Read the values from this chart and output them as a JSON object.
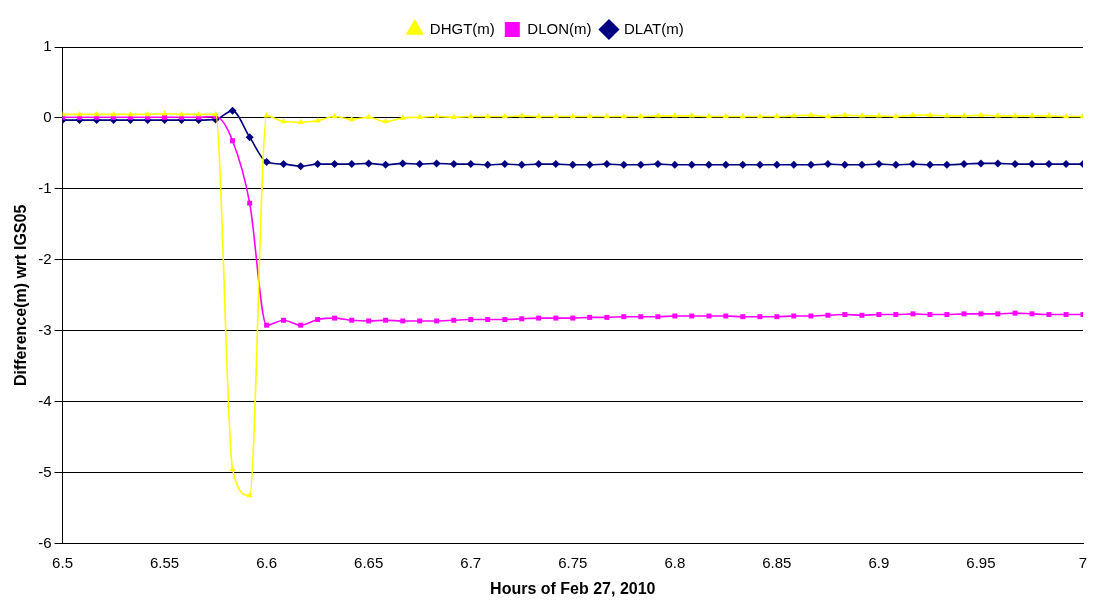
{
  "chart_data": {
    "type": "line",
    "xlabel": "Hours of Feb 27, 2010",
    "ylabel": "Difference(m) wrt IGS05",
    "x": [
      6.5,
      6.5083,
      6.5167,
      6.525,
      6.5333,
      6.5417,
      6.55,
      6.5583,
      6.5667,
      6.575,
      6.5833,
      6.5917,
      6.6,
      6.6083,
      6.6167,
      6.625,
      6.6333,
      6.6417,
      6.65,
      6.6583,
      6.6667,
      6.675,
      6.6833,
      6.6917,
      6.7,
      6.7083,
      6.7167,
      6.725,
      6.7333,
      6.7417,
      6.75,
      6.7583,
      6.7667,
      6.775,
      6.7833,
      6.7917,
      6.8,
      6.8083,
      6.8167,
      6.825,
      6.8333,
      6.8417,
      6.85,
      6.8583,
      6.8667,
      6.875,
      6.8833,
      6.8917,
      6.9,
      6.9083,
      6.9167,
      6.925,
      6.9333,
      6.9417,
      6.95,
      6.9583,
      6.9667,
      6.975,
      6.9833,
      6.9917,
      7
    ],
    "series": [
      {
        "name": "DLAT(m)",
        "color": "#000080",
        "marker": "diamond",
        "values": [
          -0.03,
          -0.03,
          -0.03,
          -0.03,
          -0.03,
          -0.03,
          -0.03,
          -0.03,
          -0.03,
          -0.02,
          0.1,
          -0.27,
          -0.62,
          -0.65,
          -0.68,
          -0.65,
          -0.65,
          -0.65,
          -0.64,
          -0.66,
          -0.64,
          -0.65,
          -0.64,
          -0.65,
          -0.65,
          -0.66,
          -0.65,
          -0.66,
          -0.65,
          -0.65,
          -0.66,
          -0.66,
          -0.65,
          -0.66,
          -0.66,
          -0.65,
          -0.66,
          -0.66,
          -0.66,
          -0.66,
          -0.66,
          -0.66,
          -0.66,
          -0.66,
          -0.66,
          -0.65,
          -0.66,
          -0.66,
          -0.65,
          -0.66,
          -0.65,
          -0.66,
          -0.66,
          -0.65,
          -0.64,
          -0.64,
          -0.65,
          -0.65,
          -0.65,
          -0.65,
          -0.65
        ]
      },
      {
        "name": "DLON(m)",
        "color": "#ff00ff",
        "marker": "square",
        "values": [
          0.01,
          0.01,
          0.01,
          0.01,
          0.01,
          0.01,
          0.01,
          0.01,
          0.01,
          0.02,
          -0.32,
          -1.2,
          -2.92,
          -2.85,
          -2.92,
          -2.84,
          -2.82,
          -2.85,
          -2.86,
          -2.85,
          -2.86,
          -2.86,
          -2.86,
          -2.85,
          -2.84,
          -2.84,
          -2.84,
          -2.83,
          -2.82,
          -2.82,
          -2.82,
          -2.81,
          -2.81,
          -2.8,
          -2.8,
          -2.8,
          -2.79,
          -2.79,
          -2.79,
          -2.79,
          -2.8,
          -2.8,
          -2.8,
          -2.79,
          -2.79,
          -2.78,
          -2.77,
          -2.78,
          -2.77,
          -2.77,
          -2.76,
          -2.77,
          -2.77,
          -2.76,
          -2.76,
          -2.76,
          -2.75,
          -2.76,
          -2.77,
          -2.77,
          -2.77
        ]
      },
      {
        "name": "DHGT(m)",
        "color": "#ffff00",
        "marker": "triangle",
        "values": [
          0.05,
          0.05,
          0.05,
          0.05,
          0.05,
          0.05,
          0.06,
          0.05,
          0.05,
          0.05,
          -4.95,
          -5.32,
          0.03,
          -0.05,
          -0.06,
          -0.04,
          0.02,
          -0.02,
          0.01,
          -0.05,
          0,
          0.01,
          0.02,
          0.01,
          0.02,
          0.02,
          0.02,
          0.03,
          0.02,
          0.02,
          0.02,
          0.02,
          0.02,
          0.02,
          0.02,
          0.03,
          0.03,
          0.03,
          0.02,
          0.02,
          0.02,
          0.02,
          0.02,
          0.03,
          0.04,
          0.02,
          0.04,
          0.03,
          0.03,
          0.02,
          0.04,
          0.04,
          0.03,
          0.03,
          0.04,
          0.03,
          0.03,
          0.03,
          0.03,
          0.02,
          0.02
        ]
      }
    ],
    "xlim": [
      6.5,
      7
    ],
    "xticks": [
      6.5,
      6.55,
      6.6,
      6.65,
      6.7,
      6.75,
      6.8,
      6.85,
      6.9,
      6.95,
      7
    ],
    "ylim": [
      -6,
      1
    ],
    "yticks": [
      -6,
      -5,
      -4,
      -3,
      -2,
      -1,
      0,
      1
    ],
    "grid": "y",
    "legend": "top",
    "line_style": "solid"
  }
}
